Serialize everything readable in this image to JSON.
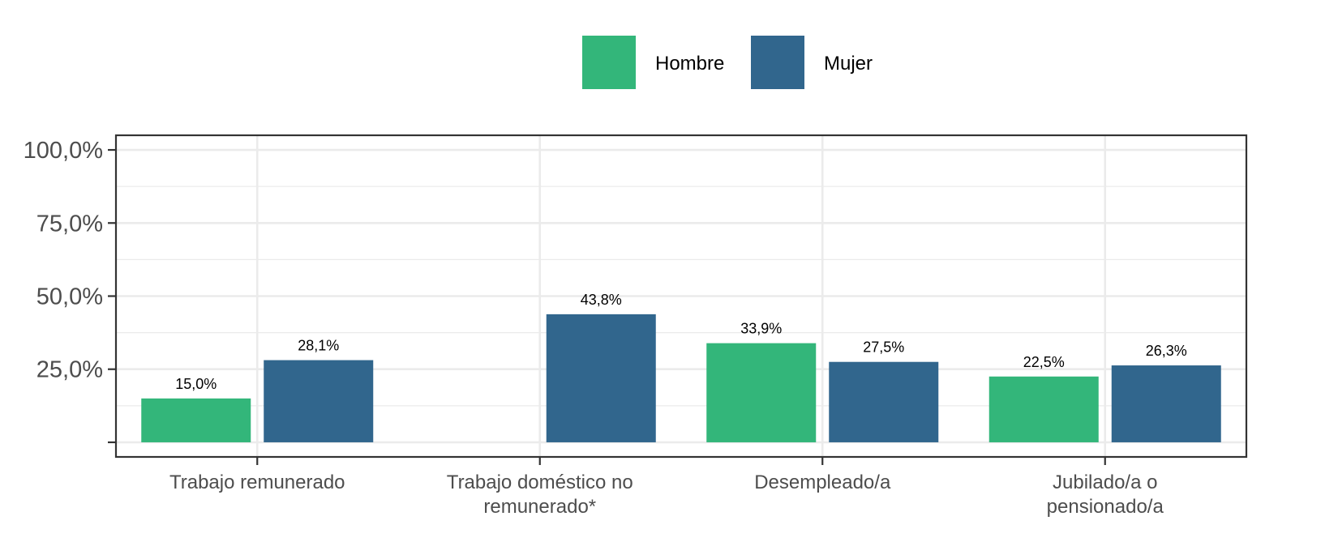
{
  "chart_data": {
    "type": "bar",
    "categories": [
      [
        "Trabajo remunerado"
      ],
      [
        "Trabajo doméstico no",
        "remunerado*"
      ],
      [
        "Desempleado/a"
      ],
      [
        "Jubilado/a o",
        "pensionado/a"
      ]
    ],
    "series": [
      {
        "name": "Hombre",
        "color": "#33b67a",
        "values": [
          15.0,
          null,
          33.9,
          22.5
        ],
        "labels": [
          "15,0%",
          "",
          "33,9%",
          "22,5%"
        ]
      },
      {
        "name": "Mujer",
        "color": "#31668d",
        "values": [
          28.1,
          43.8,
          27.5,
          26.3
        ],
        "labels": [
          "28,1%",
          "43,8%",
          "27,5%",
          "26,3%"
        ]
      }
    ],
    "yticks": [
      {
        "value": 0,
        "label": ""
      },
      {
        "value": 25,
        "label": "25,0%"
      },
      {
        "value": 50,
        "label": "50,0%"
      },
      {
        "value": 75,
        "label": "75,0%"
      },
      {
        "value": 100,
        "label": "100,0%"
      }
    ],
    "ylim": [
      -5,
      105
    ],
    "grid": true,
    "legend_position": "top",
    "title": "",
    "xlabel": "",
    "ylabel": ""
  }
}
